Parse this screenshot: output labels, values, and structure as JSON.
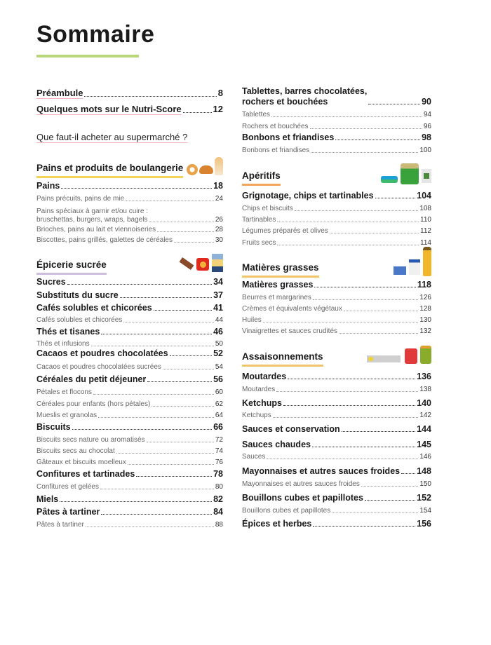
{
  "title": "Sommaire",
  "colors": {
    "title_underline": "#b9d77a",
    "pains": "#f3d35a",
    "epicerie": "#cdbedc",
    "aperitifs": "#f2a65a",
    "matieres": "#f0c56a",
    "assaisonnements": "#f0c56a"
  },
  "left": [
    {
      "kind": "intro",
      "text": "Préambule",
      "page": "8"
    },
    {
      "kind": "intro",
      "text": "Quelques mots sur le Nutri-Score",
      "page": "12"
    },
    {
      "kind": "question",
      "text": "Que faut-il acheter au supermarché ?"
    },
    {
      "kind": "section",
      "text": "Pains et produits de boulangerie",
      "color": "pains",
      "icon": "bread-icon"
    },
    {
      "kind": "major",
      "text": "Pains",
      "page": "18"
    },
    {
      "kind": "sub",
      "text": "Pains précuits, pains de mie",
      "page": "24"
    },
    {
      "kind": "sub",
      "text": "Pains spéciaux à garnir et/ou cuire :\nbruschettas, burgers, wraps, bagels",
      "page": "26"
    },
    {
      "kind": "sub",
      "text": "Brioches, pains au lait et viennoiseries",
      "page": "28"
    },
    {
      "kind": "sub",
      "text": "Biscottes, pains grillés, galettes de céréales",
      "page": "30"
    },
    {
      "kind": "section",
      "text": "Épicerie sucrée",
      "color": "epicerie",
      "icon": "sweets-icon"
    },
    {
      "kind": "major",
      "text": "Sucres",
      "page": "34"
    },
    {
      "kind": "major",
      "text": "Substituts du sucre",
      "page": "37"
    },
    {
      "kind": "major",
      "text": "Cafés solubles et chicorées",
      "page": "41"
    },
    {
      "kind": "sub",
      "text": "Cafés solubles et chicorées",
      "page": "44"
    },
    {
      "kind": "major",
      "text": "Thés et tisanes",
      "page": "46"
    },
    {
      "kind": "sub",
      "text": "Thés et infusions",
      "page": "50"
    },
    {
      "kind": "major",
      "text": "Cacaos et poudres chocolatées",
      "page": "52"
    },
    {
      "kind": "sub",
      "text": "Cacaos et poudres chocolatées sucrées",
      "page": "54"
    },
    {
      "kind": "major",
      "text": "Céréales du petit déjeuner",
      "page": "56"
    },
    {
      "kind": "sub",
      "text": "Pétales et flocons",
      "page": "60"
    },
    {
      "kind": "sub",
      "text": "Céréales pour enfants (hors pétales)",
      "page": "62"
    },
    {
      "kind": "sub",
      "text": "Mueslis et granolas",
      "page": "64"
    },
    {
      "kind": "major",
      "text": "Biscuits",
      "page": "66"
    },
    {
      "kind": "sub",
      "text": "Biscuits secs nature ou aromatisés",
      "page": "72"
    },
    {
      "kind": "sub",
      "text": "Biscuits secs au chocolat",
      "page": "74"
    },
    {
      "kind": "sub",
      "text": "Gâteaux et biscuits moelleux",
      "page": "76"
    },
    {
      "kind": "major",
      "text": "Confitures et tartinades",
      "page": "78"
    },
    {
      "kind": "sub",
      "text": "Confitures et gelées",
      "page": "80"
    },
    {
      "kind": "major",
      "text": "Miels",
      "page": "82"
    },
    {
      "kind": "major",
      "text": "Pâtes à tartiner",
      "page": "84"
    },
    {
      "kind": "sub",
      "text": "Pâtes à tartiner",
      "page": "88"
    }
  ],
  "right": [
    {
      "kind": "major",
      "text": "Tablettes, barres chocolatées,\nrochers et bouchées",
      "page": "90"
    },
    {
      "kind": "sub",
      "text": "Tablettes",
      "page": "94"
    },
    {
      "kind": "sub",
      "text": "Rochers et bouchées",
      "page": "96"
    },
    {
      "kind": "major",
      "text": "Bonbons et friandises",
      "page": "98"
    },
    {
      "kind": "sub",
      "text": "Bonbons et friandises",
      "page": "100"
    },
    {
      "kind": "section",
      "text": "Apéritifs",
      "color": "aperitifs",
      "icon": "snacks-icon"
    },
    {
      "kind": "major",
      "text": "Grignotage, chips et tartinables",
      "page": "104"
    },
    {
      "kind": "sub",
      "text": "Chips et biscuits",
      "page": "108"
    },
    {
      "kind": "sub",
      "text": "Tartinables",
      "page": "110"
    },
    {
      "kind": "sub",
      "text": "Légumes préparés et olives",
      "page": "112"
    },
    {
      "kind": "sub",
      "text": "Fruits secs",
      "page": "114"
    },
    {
      "kind": "section",
      "text": "Matières grasses",
      "color": "matieres",
      "icon": "fats-icon"
    },
    {
      "kind": "major",
      "text": "Matières grasses",
      "page": "118"
    },
    {
      "kind": "sub",
      "text": "Beurres et margarines",
      "page": "126"
    },
    {
      "kind": "sub",
      "text": "Crèmes et équivalents végétaux",
      "page": "128"
    },
    {
      "kind": "sub",
      "text": "Huiles",
      "page": "130"
    },
    {
      "kind": "sub",
      "text": "Vinaigrettes et sauces crudités",
      "page": "132"
    },
    {
      "kind": "section",
      "text": "Assaisonnements",
      "color": "assaisonnements",
      "icon": "condiments-icon"
    },
    {
      "kind": "major",
      "text": "Moutardes",
      "page": "136"
    },
    {
      "kind": "sub",
      "text": "Moutardes",
      "page": "138"
    },
    {
      "kind": "major",
      "text": "Ketchups",
      "page": "140"
    },
    {
      "kind": "sub",
      "text": "Ketchups",
      "page": "142"
    },
    {
      "kind": "major",
      "text": "Sauces et conservation",
      "page": "144"
    },
    {
      "kind": "major",
      "text": "Sauces chaudes",
      "page": "145"
    },
    {
      "kind": "sub",
      "text": "Sauces",
      "page": "146"
    },
    {
      "kind": "major",
      "text": "Mayonnaises et autres sauces froides",
      "page": "148"
    },
    {
      "kind": "sub",
      "text": "Mayonnaises et autres sauces froides",
      "page": "150"
    },
    {
      "kind": "major",
      "text": "Bouillons cubes et papillotes",
      "page": "152"
    },
    {
      "kind": "sub",
      "text": "Bouillons cubes et papillotes",
      "page": "154"
    },
    {
      "kind": "major",
      "text": "Épices et herbes",
      "page": "156"
    }
  ]
}
